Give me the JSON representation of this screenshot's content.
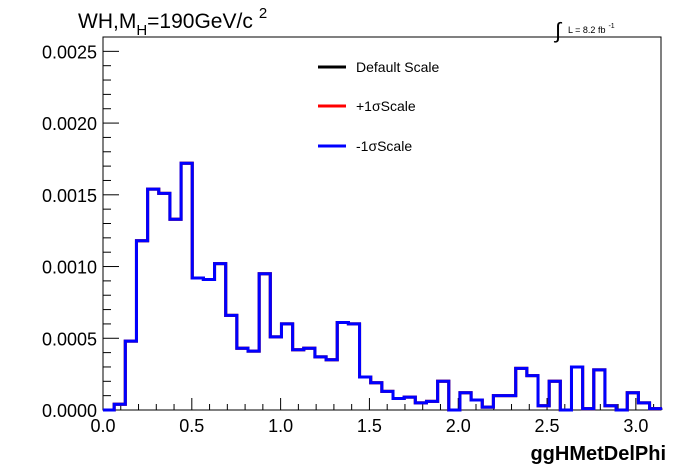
{
  "title": {
    "main": "WH,M",
    "sub": "H",
    "rest": "=190GeV/c",
    "sup": "2"
  },
  "lumi": {
    "integral_symbol": "∫",
    "text": "L = 8.2 fb",
    "sup": "-1"
  },
  "colors": {
    "default": "#000000",
    "plus": "#ff0000",
    "minus": "#0000ff"
  },
  "chart_data": {
    "type": "line",
    "histogram": true,
    "xlabel": "ggHMetDelPhi",
    "ylabel": "",
    "xlim": [
      0.0,
      3.1416
    ],
    "ylim": [
      0.0,
      0.0026
    ],
    "bin_width": 0.0628,
    "x_ticks": [
      "0.0",
      "0.5",
      "1.0",
      "1.5",
      "2.0",
      "2.5",
      "3.0"
    ],
    "x_tick_values": [
      0.0,
      0.5,
      1.0,
      1.5,
      2.0,
      2.5,
      3.0
    ],
    "y_ticks": [
      "0.0000",
      "0.0005",
      "0.0010",
      "0.0015",
      "0.0020",
      "0.0025"
    ],
    "y_tick_values": [
      0.0,
      0.0005,
      0.001,
      0.0015,
      0.002,
      0.0025
    ],
    "legend_position": "top-center",
    "series": [
      {
        "name": "Default Scale",
        "color": "#000000",
        "values": [
          0.0,
          4e-05,
          0.00048,
          0.00118,
          0.00154,
          0.00151,
          0.00133,
          0.00172,
          0.00092,
          0.00091,
          0.00102,
          0.00066,
          0.00043,
          0.00041,
          0.00095,
          0.00051,
          0.0006,
          0.00042,
          0.00043,
          0.00037,
          0.00035,
          0.00061,
          0.0006,
          0.00023,
          0.00019,
          0.00013,
          8e-05,
          9e-05,
          5e-05,
          6e-05,
          0.0002,
          0.0,
          0.00012,
          7e-05,
          2e-05,
          0.0001,
          0.0001,
          0.00029,
          0.00024,
          3e-05,
          0.0002,
          0.0,
          0.0003,
          1e-05,
          0.00028,
          3e-05,
          0.0,
          0.00012,
          5e-05,
          1e-05
        ]
      },
      {
        "name": "+1σScale",
        "color": "#ff0000",
        "values": [
          0.0,
          4e-05,
          0.00048,
          0.00118,
          0.00154,
          0.00151,
          0.00133,
          0.00172,
          0.00092,
          0.00091,
          0.00102,
          0.00066,
          0.00043,
          0.00041,
          0.00095,
          0.00051,
          0.0006,
          0.00042,
          0.00043,
          0.00037,
          0.00035,
          0.00061,
          0.0006,
          0.00023,
          0.00019,
          0.00013,
          8e-05,
          9e-05,
          5e-05,
          6e-05,
          0.0002,
          0.0,
          0.00012,
          7e-05,
          2e-05,
          0.0001,
          0.0001,
          0.00029,
          0.00024,
          3e-05,
          0.0002,
          0.0,
          0.0003,
          1e-05,
          0.00028,
          3e-05,
          0.0,
          0.00012,
          5e-05,
          1e-05
        ]
      },
      {
        "name": "-1σScale",
        "color": "#0000ff",
        "values": [
          0.0,
          4e-05,
          0.00048,
          0.00118,
          0.00154,
          0.00151,
          0.00133,
          0.00172,
          0.00092,
          0.00091,
          0.00102,
          0.00066,
          0.00043,
          0.00041,
          0.00095,
          0.00051,
          0.0006,
          0.00042,
          0.00043,
          0.00037,
          0.00035,
          0.00061,
          0.0006,
          0.00023,
          0.00019,
          0.00013,
          8e-05,
          9e-05,
          5e-05,
          6e-05,
          0.0002,
          0.0,
          0.00012,
          7e-05,
          2e-05,
          0.0001,
          0.0001,
          0.00029,
          0.00024,
          3e-05,
          0.0002,
          0.0,
          0.0003,
          1e-05,
          0.00028,
          3e-05,
          0.0,
          0.00012,
          5e-05,
          1e-05
        ]
      }
    ]
  }
}
